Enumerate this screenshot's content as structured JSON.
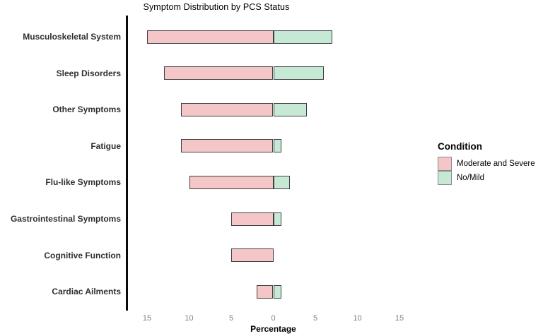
{
  "title": "Symptom Distribution by PCS Status",
  "chart_data": {
    "type": "bar",
    "variant": "diverging-horizontal-stacked",
    "title": "Symptom Distribution by PCS Status",
    "categories": [
      "Musculoskeletal System",
      "Sleep Disorders",
      "Other Symptoms",
      "Fatigue",
      "Flu-like Symptoms",
      "Gastrointestinal Symptoms",
      "Cognitive Function",
      "Cardiac Ailments"
    ],
    "series": [
      {
        "name": "Moderate and Severe",
        "direction": "left",
        "color": "#F4C6C7",
        "values": [
          15,
          13,
          11,
          11,
          10,
          5,
          5,
          2
        ]
      },
      {
        "name": "No/Mild",
        "direction": "right",
        "color": "#C6E9D6",
        "values": [
          7,
          6,
          4,
          1,
          2,
          1,
          0,
          1
        ]
      }
    ],
    "xlabel": "Percentage",
    "x_ticks": [
      -15,
      -10,
      -5,
      0,
      5,
      10,
      15
    ],
    "x_tick_labels": [
      "15",
      "10",
      "5",
      "0",
      "5",
      "10",
      "15"
    ],
    "xlim": [
      -17.4,
      17.9
    ],
    "grid": false,
    "legend_position": "right"
  },
  "legend": {
    "title": "Condition",
    "items": [
      {
        "label": "Moderate and Severe",
        "color": "#F4C6C7"
      },
      {
        "label": "No/Mild",
        "color": "#C6E9D6"
      }
    ]
  },
  "colors": {
    "bar_border": "#404040",
    "axis_line": "#0a0a0a",
    "tick_text": "#7e7e7e",
    "category_text": "#2f2f2f"
  }
}
